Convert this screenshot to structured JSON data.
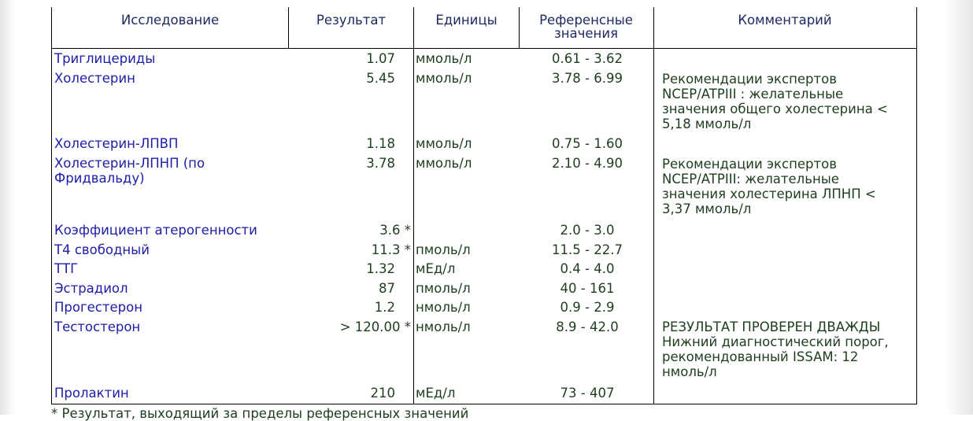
{
  "table": {
    "headers": {
      "test": "Исследование",
      "result": "Результат",
      "units": "Единицы",
      "reference_line1": "Референсные",
      "reference_line2": "значения",
      "comment": "Комментарий"
    },
    "rows": [
      {
        "name": "Триглицериды",
        "result": "1.07",
        "units": "ммоль/л",
        "reference": "0.61 - 3.62",
        "comment": ""
      },
      {
        "name": "Холестерин",
        "result": "5.45",
        "units": "ммоль/л",
        "reference": "3.78 - 6.99",
        "comment": "Рекомендации экспертов NCEP/ATPIII : желательные значения общего холестерина < 5,18 ммоль/л"
      },
      {
        "name": "Холестерин-ЛПВП",
        "result": "1.18",
        "units": "ммоль/л",
        "reference": "0.75 - 1.60",
        "comment": ""
      },
      {
        "name": "Холестерин-ЛПНП (по Фридвальду)",
        "result": "3.78",
        "units": "ммоль/л",
        "reference": "2.10 - 4.90",
        "comment": "Рекомендации экспертов NCEP/ATPIII: желательные значения холестерина ЛПНП < 3,37 ммоль/л"
      },
      {
        "name": "Коэффициент атерогенности",
        "result": "3.6 *",
        "units": "",
        "reference": "2.0 - 3.0",
        "comment": ""
      },
      {
        "name": "Т4 свободный",
        "result": "11.3 *",
        "units": "пмоль/л",
        "reference": "11.5 - 22.7",
        "comment": ""
      },
      {
        "name": "ТТГ",
        "result": "1.32",
        "units": "мЕд/л",
        "reference": "0.4 - 4.0",
        "comment": ""
      },
      {
        "name": "Эстрадиол",
        "result": "87",
        "units": "пмоль/л",
        "reference": "40 - 161",
        "comment": ""
      },
      {
        "name": "Прогестерон",
        "result": "1.2",
        "units": "нмоль/л",
        "reference": "0.9 - 2.9",
        "comment": ""
      },
      {
        "name": "Тестостерон",
        "result": "> 120.00 *",
        "units": "нмоль/л",
        "reference": "8.9 - 42.0",
        "comment": "РЕЗУЛЬТАТ ПРОВЕРЕН ДВАЖДЫ Нижний диагностический порог, рекомендованный ISSAM: 12 нмоль/л"
      },
      {
        "name": "Пролактин",
        "result": "210",
        "units": "мЕд/л",
        "reference": "73 - 407",
        "comment": ""
      }
    ]
  },
  "footnote": "* Результат, выходящий за пределы референсных значений"
}
